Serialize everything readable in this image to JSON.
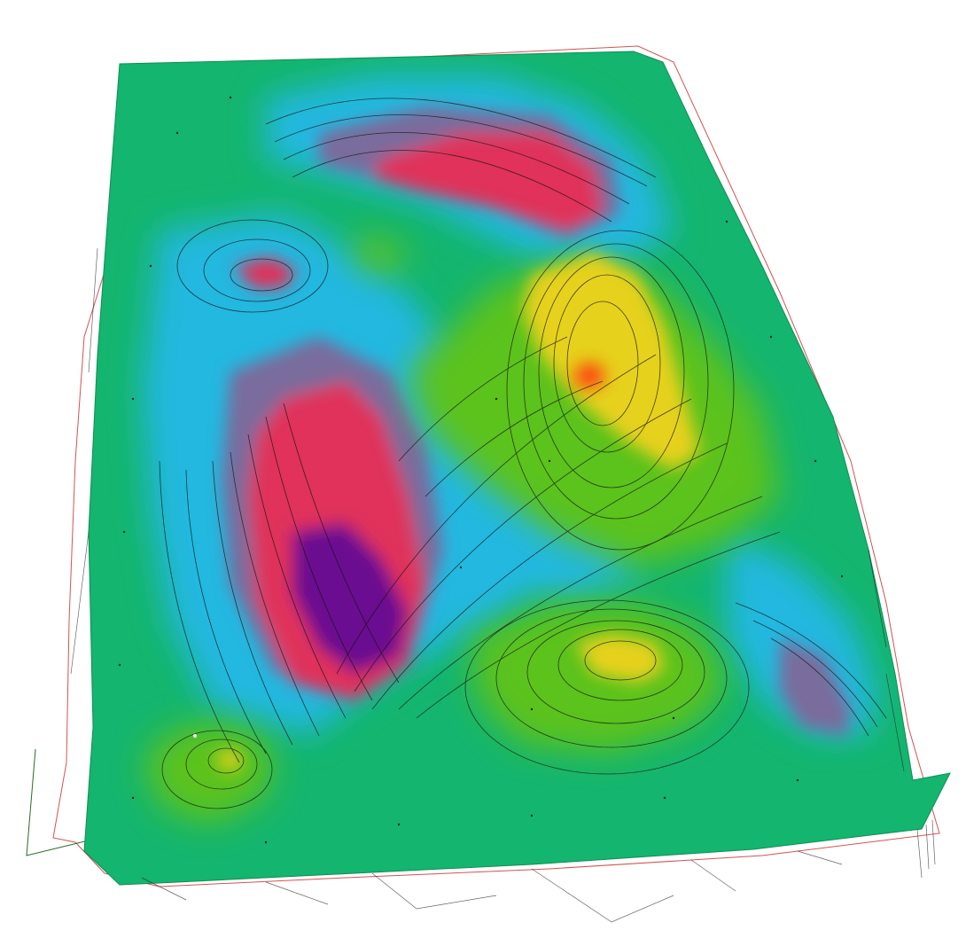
{
  "view": {
    "background_color": "#ffffff",
    "surface_type": "3D terrain surface with contour lines",
    "color_ramp": {
      "base": "#14b56e",
      "low_mid": "#22b8e0",
      "low": "#7a6c9c",
      "lower": "#e0305a",
      "lowest": "#6a1090",
      "high_mid": "#5cc21a",
      "high": "#e6d11e",
      "highest": "#ff3a10"
    },
    "contour_color": "#111111",
    "boundary_color": "#c82828"
  },
  "features": [
    {
      "name": "north-ridge-depression",
      "level": "lower"
    },
    {
      "name": "west-pit",
      "level": "lower"
    },
    {
      "name": "central-trough",
      "level": "lowest"
    },
    {
      "name": "east-peak",
      "level": "highest"
    },
    {
      "name": "south-hill",
      "level": "high"
    },
    {
      "name": "southwest-mound",
      "level": "high"
    },
    {
      "name": "east-basin",
      "level": "low"
    }
  ]
}
